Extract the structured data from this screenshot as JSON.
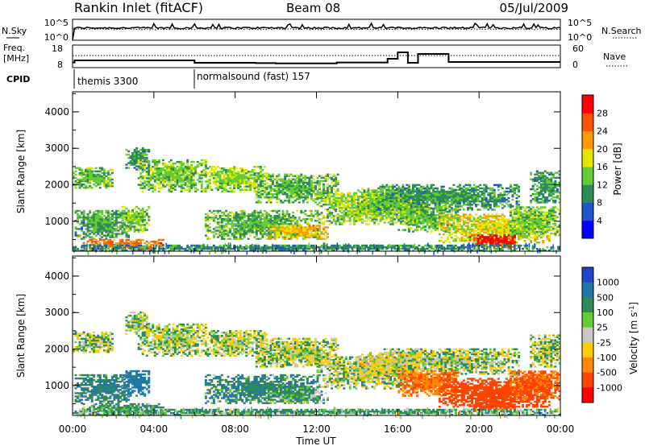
{
  "header": {
    "title": "Rankin Inlet (fitACF)",
    "beam": "Beam 08",
    "date": "05/Jul/2009"
  },
  "chart_data": {
    "type": "heatmap",
    "x_axis": {
      "label": "Time UT",
      "ticks": [
        "00:00",
        "04:00",
        "08:00",
        "12:00",
        "16:00",
        "20:00",
        "00:00"
      ],
      "range_hours": [
        0,
        24
      ]
    },
    "nsky_panel": {
      "left_label": "N.Sky",
      "right_label": "N.Search",
      "tick_labels": [
        "10^5",
        "10^0"
      ]
    },
    "freq_panel": {
      "left_label_1": "Freq.",
      "left_label_2": "[MHz]",
      "left_ticks": [
        "18",
        "8"
      ],
      "right_label": "Nave",
      "right_ticks": [
        "60",
        "0"
      ],
      "freq_hint": [
        [
          0,
          11.2
        ],
        [
          0.1,
          12.5
        ],
        [
          6,
          11.0
        ],
        [
          9,
          10.8
        ],
        [
          10,
          10.6
        ],
        [
          13,
          11.2
        ],
        [
          15.5,
          13.5
        ],
        [
          16,
          17.5
        ],
        [
          16.5,
          11.0
        ],
        [
          17,
          16.5
        ],
        [
          18.5,
          11.5
        ],
        [
          24,
          11.5
        ]
      ]
    },
    "cpid": {
      "label": "CPID",
      "segments": [
        {
          "start_h": 0.1,
          "text": "themis 3300"
        },
        {
          "start_h": 6.0,
          "text": "normalsound (fast) 157"
        }
      ]
    },
    "power_panel": {
      "ylabel": "Slant Range [km]",
      "y_ticks": [
        1000,
        2000,
        3000,
        4000
      ],
      "yrange_km": [
        180,
        4550
      ],
      "colorbar_label": "Power [dB]",
      "colorbar_ticks": [
        "28",
        "24",
        "20",
        "16",
        "12",
        "8",
        "4"
      ],
      "colors": [
        "#0000ff",
        "#2255cc",
        "#2e8b57",
        "#66cc33",
        "#e5e500",
        "#ff9900",
        "#ff5500",
        "#ff0000"
      ],
      "levels_db": [
        0,
        4,
        8,
        12,
        16,
        20,
        24,
        28,
        32
      ]
    },
    "velocity_panel": {
      "ylabel": "Slant Range [km]",
      "y_ticks": [
        1000,
        2000,
        3000,
        4000
      ],
      "yrange_km": [
        180,
        4550
      ],
      "colorbar_label": "Velocity [m s",
      "colorbar_label_sup": "-1",
      "colorbar_ticks": [
        "1000",
        "500",
        "100",
        "25",
        "-25",
        "-100",
        "-500",
        "-1000"
      ],
      "colors": [
        "#2244cc",
        "#2277aa",
        "#2e8b57",
        "#66cc33",
        "#c8c8c8",
        "#ffcc00",
        "#ff8800",
        "#ff4400",
        "#ff0000"
      ]
    },
    "echo_regions": [
      {
        "t0": 0.0,
        "t1": 2.0,
        "r0": 1900,
        "r1": 2450,
        "power": 13,
        "vel": 0
      },
      {
        "t0": 0.1,
        "t1": 2.8,
        "r0": 500,
        "r1": 1300,
        "power": 12,
        "vel": 100
      },
      {
        "t0": 0.5,
        "t1": 4.5,
        "r0": 200,
        "r1": 500,
        "power": 24,
        "vel": 60
      },
      {
        "t0": 2.4,
        "t1": 3.8,
        "r0": 700,
        "r1": 1400,
        "power": 14,
        "vel": 150
      },
      {
        "t0": 2.6,
        "t1": 3.8,
        "r0": 2400,
        "r1": 3000,
        "power": 10,
        "vel": 0
      },
      {
        "t0": 3.2,
        "t1": 6.5,
        "r0": 1800,
        "r1": 2700,
        "power": 14,
        "vel": 0
      },
      {
        "t0": 6.5,
        "t1": 9.5,
        "r0": 1800,
        "r1": 2500,
        "power": 15,
        "vel": 0
      },
      {
        "t0": 9.0,
        "t1": 13.0,
        "r0": 1500,
        "r1": 2300,
        "power": 13,
        "vel": 0
      },
      {
        "t0": 6.5,
        "t1": 12.0,
        "r0": 500,
        "r1": 1300,
        "power": 13,
        "vel": 80
      },
      {
        "t0": 9.5,
        "t1": 12.5,
        "r0": 500,
        "r1": 900,
        "power": 20,
        "vel": 40
      },
      {
        "t0": 12.0,
        "t1": 17.0,
        "r0": 900,
        "r1": 1800,
        "power": 15,
        "vel": 0
      },
      {
        "t0": 14.0,
        "t1": 17.5,
        "r0": 1200,
        "r1": 1900,
        "power": 14,
        "vel": -40
      },
      {
        "t0": 15.0,
        "t1": 22.0,
        "r0": 1300,
        "r1": 2000,
        "power": 11,
        "vel": 0
      },
      {
        "t0": 16.0,
        "t1": 19.0,
        "r0": 700,
        "r1": 1400,
        "power": 13,
        "vel": -180
      },
      {
        "t0": 18.0,
        "t1": 23.5,
        "r0": 400,
        "r1": 1200,
        "power": 18,
        "vel": -300
      },
      {
        "t0": 19.5,
        "t1": 21.8,
        "r0": 280,
        "r1": 600,
        "power": 30,
        "vel": -350
      },
      {
        "t0": 22.5,
        "t1": 24.0,
        "r0": 1500,
        "r1": 2400,
        "power": 11,
        "vel": 0
      },
      {
        "t0": 21.5,
        "t1": 24.0,
        "r0": 600,
        "r1": 1400,
        "power": 14,
        "vel": -220
      },
      {
        "t0": 0.0,
        "t1": 24.0,
        "r0": 180,
        "r1": 350,
        "power": 10,
        "vel": 60
      }
    ]
  }
}
